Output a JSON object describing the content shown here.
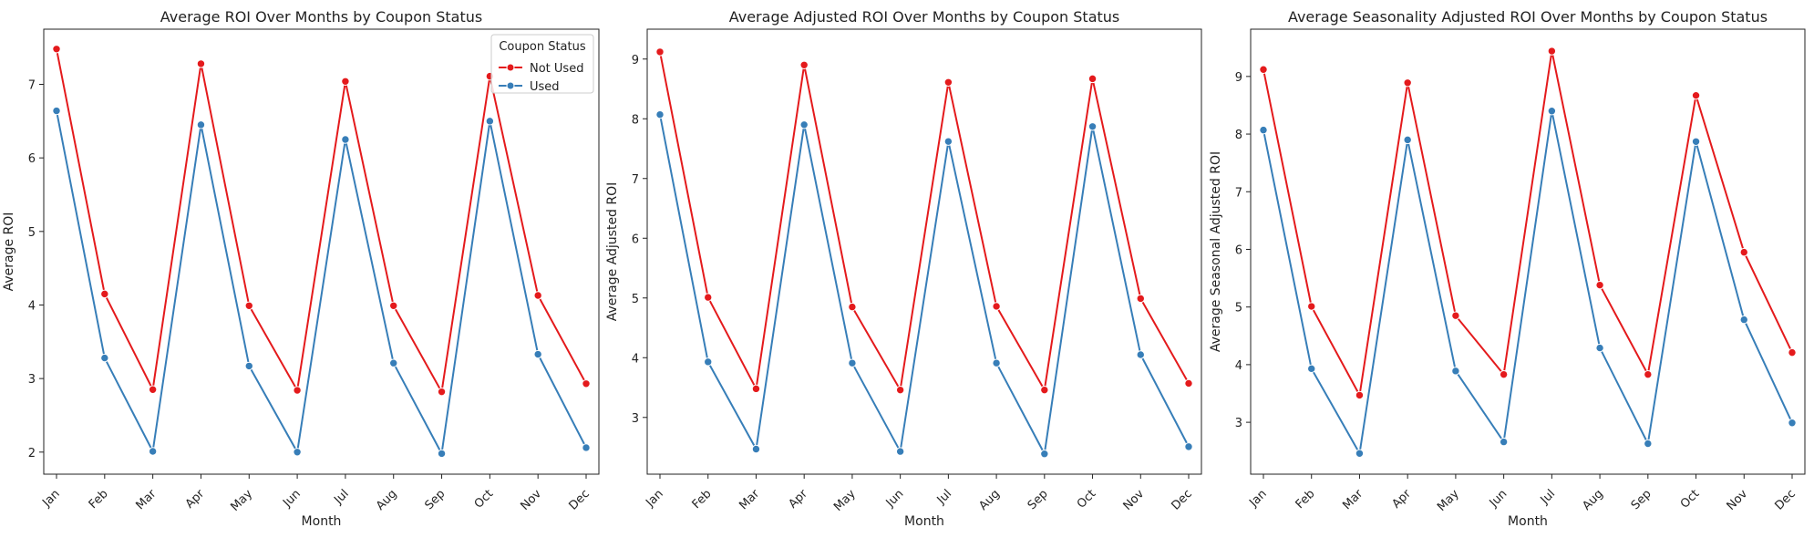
{
  "colors": {
    "not_used": "#e41a1c",
    "used": "#377eb8",
    "axis": "#222222"
  },
  "legend": {
    "title": "Coupon Status",
    "entries": [
      "Not Used",
      "Used"
    ]
  },
  "chart_data": [
    {
      "type": "line",
      "title": "Average ROI Over Months by Coupon Status",
      "xlabel": "Month",
      "ylabel": "Average ROI",
      "categories": [
        "Jan",
        "Feb",
        "Mar",
        "Apr",
        "May",
        "Jun",
        "Jul",
        "Aug",
        "Sep",
        "Oct",
        "Nov",
        "Dec"
      ],
      "ylim": [
        1.7,
        7.75
      ],
      "yticks": [
        2,
        3,
        4,
        5,
        6,
        7
      ],
      "legend": "top-right",
      "series": [
        {
          "name": "Not Used",
          "values": [
            7.48,
            4.15,
            2.85,
            7.28,
            3.99,
            2.84,
            7.04,
            3.99,
            2.82,
            7.11,
            4.13,
            2.93
          ]
        },
        {
          "name": "Used",
          "values": [
            6.64,
            3.28,
            2.01,
            6.45,
            3.17,
            2.0,
            6.25,
            3.21,
            1.98,
            6.5,
            3.33,
            2.06
          ]
        }
      ]
    },
    {
      "type": "line",
      "title": "Average Adjusted ROI Over Months by Coupon Status",
      "xlabel": "Month",
      "ylabel": "Average Adjusted ROI",
      "categories": [
        "Jan",
        "Feb",
        "Mar",
        "Apr",
        "May",
        "Jun",
        "Jul",
        "Aug",
        "Sep",
        "Oct",
        "Nov",
        "Dec"
      ],
      "ylim": [
        2.05,
        9.5
      ],
      "yticks": [
        3,
        4,
        5,
        6,
        7,
        8,
        9
      ],
      "series": [
        {
          "name": "Not Used",
          "values": [
            9.12,
            5.01,
            3.48,
            8.9,
            4.85,
            3.46,
            8.61,
            4.86,
            3.46,
            8.67,
            4.99,
            3.57
          ]
        },
        {
          "name": "Used",
          "values": [
            8.07,
            3.93,
            2.47,
            7.9,
            3.91,
            2.43,
            7.62,
            3.91,
            2.39,
            7.87,
            4.05,
            2.51
          ]
        }
      ]
    },
    {
      "type": "line",
      "title": "Average Seasonality Adjusted ROI Over Months by Coupon Status",
      "xlabel": "Month",
      "ylabel": "Average Seasonal Adjusted ROI",
      "categories": [
        "Jan",
        "Feb",
        "Mar",
        "Apr",
        "May",
        "Jun",
        "Jul",
        "Aug",
        "Sep",
        "Oct",
        "Nov",
        "Dec"
      ],
      "ylim": [
        2.1,
        9.82
      ],
      "yticks": [
        3,
        4,
        5,
        6,
        7,
        8,
        9
      ],
      "series": [
        {
          "name": "Not Used",
          "values": [
            9.12,
            5.01,
            3.47,
            8.89,
            4.85,
            3.83,
            9.44,
            5.38,
            3.83,
            8.67,
            5.95,
            4.21
          ]
        },
        {
          "name": "Used",
          "values": [
            8.07,
            3.93,
            2.46,
            7.9,
            3.89,
            2.66,
            8.4,
            4.29,
            2.63,
            7.87,
            4.78,
            2.99
          ]
        }
      ]
    }
  ]
}
